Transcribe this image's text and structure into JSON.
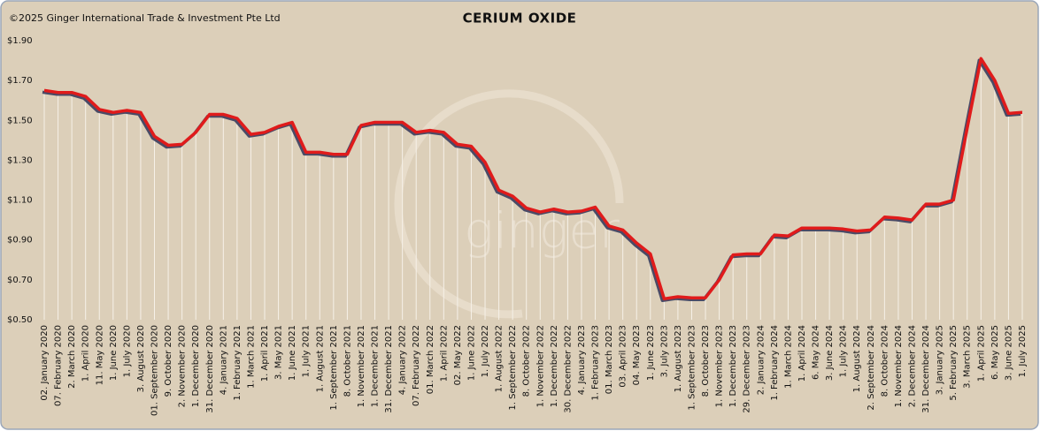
{
  "chart_data": {
    "type": "line",
    "title": "CERIUM OXIDE",
    "copyright": "©2025 Ginger International Trade & Investment Pte Ltd",
    "watermark": "ginger",
    "categories": [
      "02. January 2020",
      "07. February 2020",
      "2. March 2020",
      "1. April 2020",
      "11. May 2020",
      "1. June 2020",
      "1. July 2020",
      "3. August 2020",
      "01. September 2020",
      "9. October 2020",
      "2. November 2020",
      "1. December 2020",
      "31. December 2020",
      "4. January 2021",
      "1. February 2021",
      "1. March 2021",
      "1. April 2021",
      "3. May 2021",
      "1. June 2021",
      "1. July 2021",
      "1. August 2021",
      "1. September 2021",
      "8. October 2021",
      "1. November 2021",
      "1. December 2021",
      "31. December 2021",
      "4. January 2022",
      "07. February 2022",
      "01. March 2022",
      "1. April 2022",
      "02. May 2022",
      "1. June 2022",
      "1. July 2022",
      "1. August 2022",
      "1. September 2022",
      "8. October 2022",
      "1. November 2022",
      "1. December 2022",
      "30. December 2022",
      "4. January 2023",
      "1. February 2023",
      "01. March 2023",
      "03. April 2023",
      "04. May 2023",
      "1. June 2023",
      "3. July 2023",
      "1. August 2023",
      "1. September 2023",
      "8. October 2023",
      "1. November 2023",
      "1. December 2023",
      "29. December 2023",
      "2. January 2024",
      "1. February 2024",
      "1. March 2024",
      "1. April 2024",
      "6. May 2024",
      "3. June 2024",
      "1. July 2024",
      "1. August 2024",
      "2. September 2024",
      "8. October 2024",
      "1. November 2024",
      "2. December 2024",
      "31. December 2024",
      "3. January 2025",
      "5. February 2025",
      "3. March 2025",
      "1. April 2025",
      "6. May 2025",
      "3. June 2025",
      "1. July 2025"
    ],
    "series": [
      {
        "name": "Cerium Oxide",
        "color": "#e01b1b",
        "values": [
          1.65,
          1.64,
          1.64,
          1.62,
          1.555,
          1.54,
          1.55,
          1.54,
          1.42,
          1.375,
          1.38,
          1.44,
          1.53,
          1.53,
          1.51,
          1.43,
          1.44,
          1.47,
          1.49,
          1.34,
          1.34,
          1.33,
          1.33,
          1.475,
          1.49,
          1.49,
          1.49,
          1.44,
          1.45,
          1.44,
          1.38,
          1.37,
          1.29,
          1.15,
          1.12,
          1.06,
          1.04,
          1.055,
          1.04,
          1.045,
          1.065,
          0.97,
          0.95,
          0.885,
          0.83,
          0.605,
          0.615,
          0.61,
          0.61,
          0.7,
          0.825,
          0.83,
          0.83,
          0.925,
          0.92,
          0.96,
          0.96,
          0.96,
          0.955,
          0.945,
          0.95,
          1.015,
          1.01,
          1.0,
          1.08,
          1.08,
          1.1,
          1.46,
          1.81,
          1.7,
          1.535,
          1.54
        ]
      }
    ],
    "ylim": [
      0.5,
      1.9
    ],
    "yticks": [
      {
        "value": 0.5,
        "label": "$0.50"
      },
      {
        "value": 0.7,
        "label": "$0.70"
      },
      {
        "value": 0.9,
        "label": "$0.90"
      },
      {
        "value": 1.1,
        "label": "$1.10"
      },
      {
        "value": 1.3,
        "label": "$1.30"
      },
      {
        "value": 1.5,
        "label": "$1.50"
      },
      {
        "value": 1.7,
        "label": "$1.70"
      },
      {
        "value": 1.9,
        "label": "$1.90"
      }
    ],
    "grid": false,
    "drop_lines": true
  }
}
